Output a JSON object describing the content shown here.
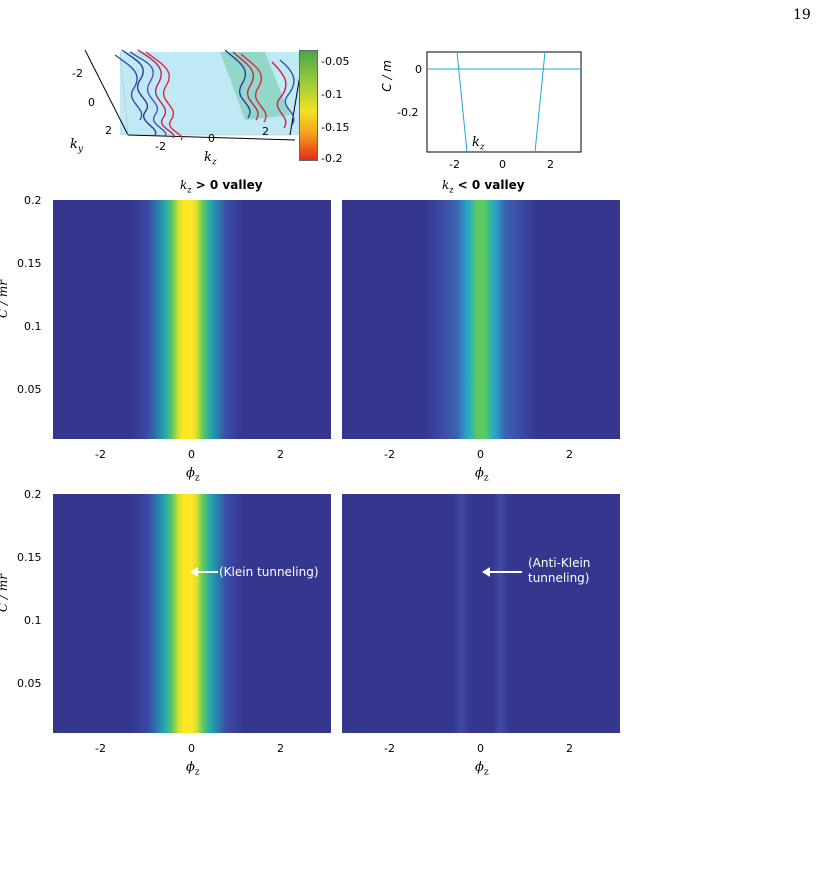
{
  "page_number": "19",
  "colors": {
    "background_low": "#35378f",
    "peak_yellow": "#fde725",
    "peak_cyan": "#2cb9c8",
    "peak_green": "#5ec962",
    "line_blue": "#1fa8d8",
    "annotation_text": "#ffffff"
  },
  "top_3d": {
    "ylabel": "k",
    "ylabel_sub": "y",
    "xlabel": "k",
    "xlabel_sub": "z",
    "y_ticks": [
      "-2",
      "0",
      "2"
    ],
    "x_ticks": [
      "-2",
      "0",
      "2"
    ],
    "colorbar_ticks": [
      "-0.05",
      "-0.1",
      "-0.15",
      "-0.2"
    ]
  },
  "top_line": {
    "ylabel": "C / m",
    "y_ticks": [
      "0",
      "-0.2"
    ],
    "x_ticks": [
      "-2",
      "0",
      "2"
    ],
    "xlabel": "k",
    "xlabel_sub": "z"
  },
  "panels": {
    "titles": {
      "left": {
        "math": "k",
        "sub": "z",
        "text": " > 0 valley"
      },
      "right": {
        "math": "k",
        "sub": "z",
        "text": " < 0 valley"
      }
    },
    "ylabel": "C / mr",
    "y_ticks": [
      "0.2",
      "0.15",
      "0.1",
      "0.05"
    ],
    "x_ticks": [
      "-2",
      "0",
      "2"
    ],
    "xlabel": "ϕ",
    "xlabel_sub": "z",
    "annotations": {
      "klein": "(Klein tunneling)",
      "anti_klein_1": "(Anti-Klein",
      "anti_klein_2": "tunneling)"
    }
  },
  "chart_data": [
    {
      "type": "heatmap",
      "panel": "top-left",
      "title": "k_z > 0 valley",
      "xlabel": "ϕ_z",
      "ylabel": "C / mr",
      "xlim": [
        -3.2,
        3.2
      ],
      "ylim": [
        0.008,
        0.2
      ],
      "peak_center": -0.1,
      "peak_color": "yellow",
      "peak_intensity": 1.0
    },
    {
      "type": "heatmap",
      "panel": "top-right",
      "title": "k_z < 0 valley",
      "xlabel": "ϕ_z",
      "ylabel": "C / mr",
      "xlim": [
        -3.2,
        3.2
      ],
      "ylim": [
        0.008,
        0.2
      ],
      "peak_center": 0.0,
      "peak_color": "cyan-green",
      "peak_intensity": 0.55
    },
    {
      "type": "heatmap",
      "panel": "bottom-left",
      "xlabel": "ϕ_z",
      "ylabel": "C / mr",
      "xlim": [
        -3.2,
        3.2
      ],
      "ylim": [
        0.008,
        0.2
      ],
      "peak_center": -0.1,
      "peak_color": "yellow",
      "peak_intensity": 1.0,
      "annotation": "(Klein tunneling)"
    },
    {
      "type": "heatmap",
      "panel": "bottom-right",
      "xlabel": "ϕ_z",
      "ylabel": "C / mr",
      "xlim": [
        -3.2,
        3.2
      ],
      "ylim": [
        0.008,
        0.2
      ],
      "peak_center": 0.0,
      "peak_color": "faint",
      "peak_intensity": 0.08,
      "annotation": "(Anti-Klein tunneling)"
    },
    {
      "type": "line",
      "panel": "top-right-small",
      "xlabel": "k_z",
      "ylabel": "C / m",
      "xlim": [
        -3.2,
        3.2
      ],
      "ylim": [
        -0.2,
        0.05
      ],
      "series": [
        {
          "x": [
            -3.2,
            3.2
          ],
          "values": [
            0,
            0
          ]
        }
      ]
    },
    {
      "type": "scatter",
      "panel": "top-left-3d",
      "xlabel": "k_z",
      "ylabel": "k_y",
      "colorbar_range": [
        -0.2,
        -0.02
      ]
    }
  ]
}
